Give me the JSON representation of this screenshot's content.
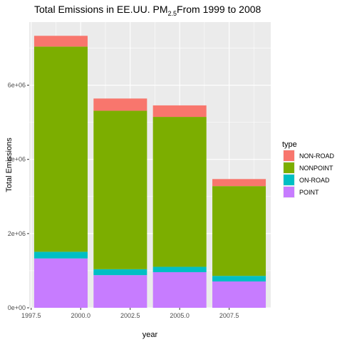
{
  "chart_data": {
    "type": "bar",
    "stacked": true,
    "title_prefix": "Total Emissions in EE.UU. PM",
    "title_subscript": "2.5",
    "title_suffix": "From 1999 to 2008",
    "xlabel": "year",
    "ylabel": "Total Emissions",
    "x": [
      1999,
      2002,
      2005,
      2008
    ],
    "xlim": [
      1997.4,
      2009.6
    ],
    "ylim": [
      0,
      7700000
    ],
    "x_ticks": [
      1997.5,
      2000.0,
      2002.5,
      2005.0,
      2007.5
    ],
    "x_tick_labels": [
      "1997.5",
      "2000.0",
      "2002.5",
      "2005.0",
      "2007.5"
    ],
    "y_ticks": [
      0,
      2000000,
      4000000,
      6000000
    ],
    "y_tick_labels": [
      "0e+00",
      "2e+06",
      "4e+06",
      "6e+06"
    ],
    "grid": true,
    "legend_title": "type",
    "legend_position": "right",
    "series": [
      {
        "name": "POINT",
        "color": "#C77CFF",
        "values": [
          1330000,
          880000,
          960000,
          710000
        ]
      },
      {
        "name": "ON-ROAD",
        "color": "#00BFC4",
        "values": [
          180000,
          160000,
          145000,
          150000
        ]
      },
      {
        "name": "NONPOINT",
        "color": "#7CAE00",
        "values": [
          5530000,
          4270000,
          4040000,
          2420000
        ]
      },
      {
        "name": "NON-ROAD",
        "color": "#F8766D",
        "values": [
          290000,
          330000,
          310000,
          190000
        ]
      }
    ],
    "legend_order": [
      "NON-ROAD",
      "NONPOINT",
      "ON-ROAD",
      "POINT"
    ],
    "panel_background": "#EBEBEB",
    "grid_color": "#FFFFFF"
  }
}
